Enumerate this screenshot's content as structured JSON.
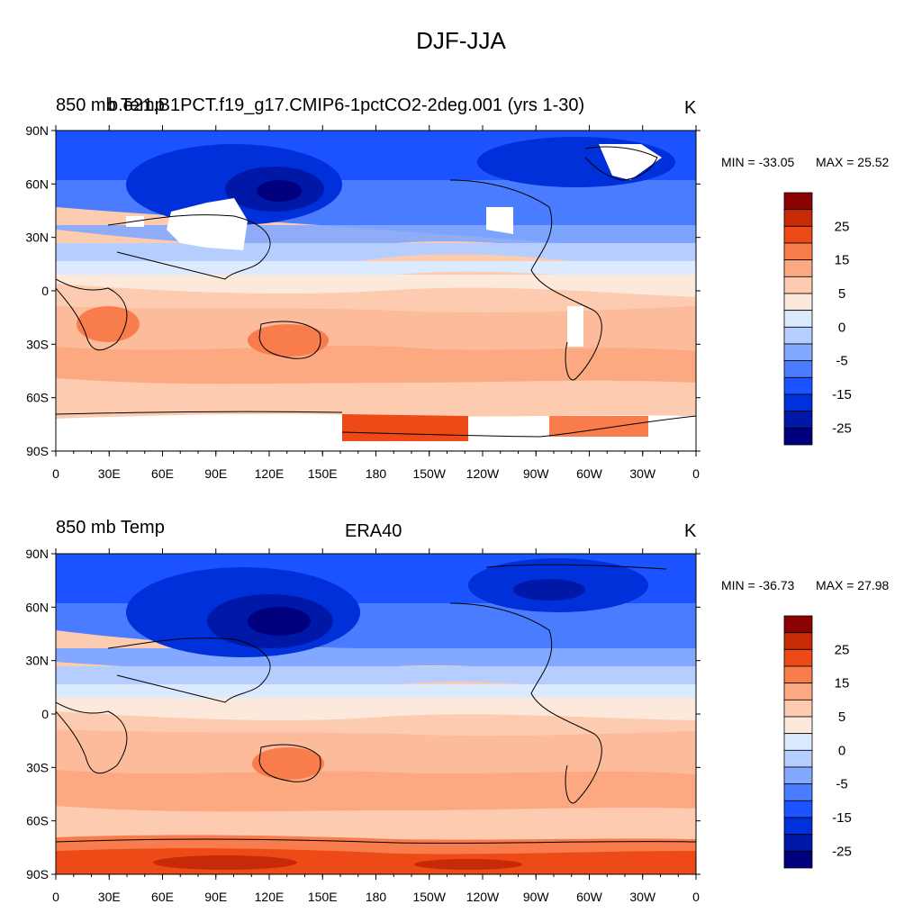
{
  "figure": {
    "title": "DJF-JJA",
    "units": "K"
  },
  "colors": {
    "levels": [
      "#00007f",
      "#0018a8",
      "#0030d9",
      "#1a53ff",
      "#4a7cff",
      "#82a8ff",
      "#b5cdff",
      "#dceaff",
      "#fde8dc",
      "#fdcbb0",
      "#fca981",
      "#f97d4c",
      "#ee4a18",
      "#c72a06",
      "#8c0303"
    ],
    "land_mask": "#ffffff",
    "coast": "#000000"
  },
  "panels": [
    {
      "id": "top",
      "left_title": "850 mb Temp",
      "case_title": "b.e21.B1PCT.f19_g17.CMIP6-1pctCO2-2deg.001 (yrs 1-30)",
      "units": "K",
      "min_label": "MIN = -33.05",
      "max_label": "MAX =  25.52"
    },
    {
      "id": "bottom",
      "left_title": "850 mb Temp",
      "case_title": "ERA40",
      "units": "K",
      "min_label": "MIN = -36.73",
      "max_label": "MAX =  27.98"
    }
  ],
  "axes": {
    "lat_labels": [
      "90N",
      "60N",
      "30N",
      "0",
      "30S",
      "60S",
      "90S"
    ],
    "lon_labels": [
      "0",
      "30E",
      "60E",
      "90E",
      "120E",
      "150E",
      "180",
      "150W",
      "120W",
      "90W",
      "60W",
      "30W",
      "0"
    ]
  },
  "colorbar": {
    "labels": [
      "25",
      "15",
      "5",
      "0",
      "-5",
      "-15",
      "-25"
    ]
  },
  "chart_data": [
    {
      "type": "heatmap",
      "title": "850 mb Temp — b.e21.B1PCT.f19_g17.CMIP6-1pctCO2-2deg.001 (yrs 1-30)",
      "units": "K",
      "contour_levels": [
        -30,
        -25,
        -20,
        -15,
        -10,
        -5,
        -2,
        0,
        2,
        5,
        10,
        15,
        20,
        25,
        30
      ],
      "lat_range": [
        -90,
        90
      ],
      "lon_range": [
        0,
        360
      ],
      "min": -33.05,
      "max": 25.52,
      "zonal_profile": [
        {
          "lat": 80,
          "value": -15
        },
        {
          "lat": 60,
          "value": -20
        },
        {
          "lat": 45,
          "value": -12
        },
        {
          "lat": 30,
          "value": -8
        },
        {
          "lat": 15,
          "value": -3
        },
        {
          "lat": 0,
          "value": 2
        },
        {
          "lat": -15,
          "value": 5
        },
        {
          "lat": -30,
          "value": 9
        },
        {
          "lat": -45,
          "value": 7
        },
        {
          "lat": -60,
          "value": 5
        },
        {
          "lat": -75,
          "value": 15
        }
      ]
    },
    {
      "type": "heatmap",
      "title": "850 mb Temp — ERA40",
      "units": "K",
      "contour_levels": [
        -30,
        -25,
        -20,
        -15,
        -10,
        -5,
        -2,
        0,
        2,
        5,
        10,
        15,
        20,
        25,
        30
      ],
      "lat_range": [
        -90,
        90
      ],
      "lon_range": [
        0,
        360
      ],
      "min": -36.73,
      "max": 27.98,
      "zonal_profile": [
        {
          "lat": 80,
          "value": -17
        },
        {
          "lat": 60,
          "value": -24
        },
        {
          "lat": 45,
          "value": -14
        },
        {
          "lat": 30,
          "value": -9
        },
        {
          "lat": 15,
          "value": -3
        },
        {
          "lat": 0,
          "value": 1
        },
        {
          "lat": -15,
          "value": 5
        },
        {
          "lat": -30,
          "value": 9
        },
        {
          "lat": -45,
          "value": 7
        },
        {
          "lat": -60,
          "value": 7
        },
        {
          "lat": -75,
          "value": 20
        },
        {
          "lat": -88,
          "value": 25
        }
      ]
    }
  ]
}
